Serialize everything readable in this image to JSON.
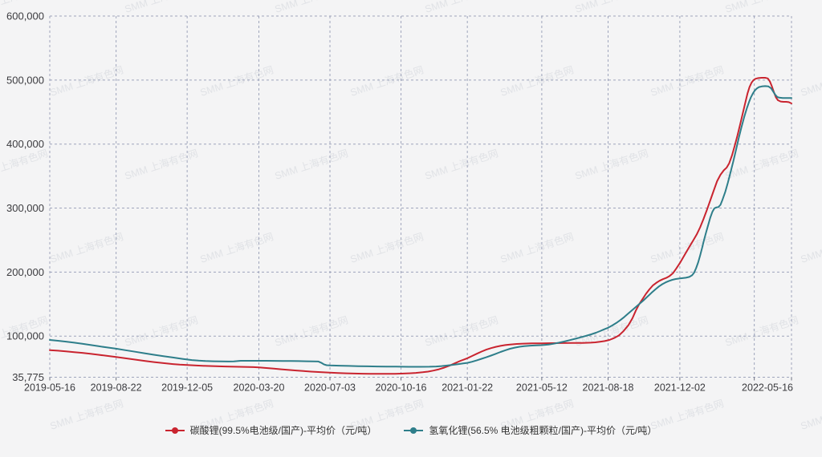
{
  "watermark": {
    "text": "SMM 上海有色网",
    "color": "#aeb2bf",
    "opacity": 0.28
  },
  "chart_data": {
    "type": "line",
    "title": "",
    "grid": "dashed",
    "legend_position": "bottom-center",
    "plot_bg": "#f4f4f5",
    "gridline_color": "#8f96b2",
    "axis_text_color": "#3b3b3f",
    "x_axis": {
      "kind": "date",
      "total_days": 1096,
      "tick_labels": [
        "2019-05-16",
        "2019-08-22",
        "2019-12-05",
        "2020-03-20",
        "2020-07-03",
        "2020-10-16",
        "2021-01-22",
        "2021-05-12",
        "2021-08-18",
        "2021-12-02",
        "2022-05-16"
      ],
      "tick_days": [
        0,
        98,
        203,
        309,
        414,
        519,
        617,
        727,
        825,
        931,
        1096
      ],
      "unlabeled_gridline_days": [
        1041
      ]
    },
    "y_axis": {
      "min": 35775,
      "max": 600000,
      "unit": "元/吨",
      "tick_values": [
        35775,
        100000,
        200000,
        300000,
        400000,
        500000,
        600000
      ],
      "tick_labels": [
        "35,775",
        "100,000",
        "200,000",
        "300,000",
        "400,000",
        "500,000",
        "600,000"
      ]
    },
    "series": [
      {
        "name": "碳酸锂(99.5%电池级/国产)-平均价（元/吨）",
        "color": "#c9242f",
        "points": [
          [
            0,
            78000
          ],
          [
            12,
            77200
          ],
          [
            24,
            76200
          ],
          [
            36,
            75000
          ],
          [
            48,
            73800
          ],
          [
            60,
            72400
          ],
          [
            72,
            70800
          ],
          [
            84,
            69200
          ],
          [
            98,
            67300
          ],
          [
            112,
            65300
          ],
          [
            126,
            63300
          ],
          [
            140,
            61300
          ],
          [
            154,
            59500
          ],
          [
            168,
            57800
          ],
          [
            182,
            56300
          ],
          [
            192,
            55500
          ],
          [
            203,
            54800
          ],
          [
            217,
            54000
          ],
          [
            231,
            53400
          ],
          [
            245,
            52900
          ],
          [
            259,
            52500
          ],
          [
            273,
            52200
          ],
          [
            287,
            51900
          ],
          [
            301,
            51500
          ],
          [
            309,
            51200
          ],
          [
            320,
            50200
          ],
          [
            331,
            49200
          ],
          [
            342,
            48200
          ],
          [
            353,
            47200
          ],
          [
            364,
            46300
          ],
          [
            375,
            45400
          ],
          [
            386,
            44600
          ],
          [
            397,
            43900
          ],
          [
            408,
            43300
          ],
          [
            414,
            43000
          ],
          [
            426,
            42400
          ],
          [
            438,
            41900
          ],
          [
            450,
            41500
          ],
          [
            462,
            41300
          ],
          [
            474,
            41200
          ],
          [
            486,
            41100
          ],
          [
            498,
            41100
          ],
          [
            510,
            41200
          ],
          [
            519,
            41400
          ],
          [
            531,
            41900
          ],
          [
            541,
            42600
          ],
          [
            551,
            43500
          ],
          [
            559,
            44600
          ],
          [
            567,
            46200
          ],
          [
            575,
            48200
          ],
          [
            583,
            50800
          ],
          [
            591,
            54000
          ],
          [
            599,
            57800
          ],
          [
            607,
            61500
          ],
          [
            612,
            63500
          ],
          [
            617,
            65500
          ],
          [
            624,
            69000
          ],
          [
            631,
            72500
          ],
          [
            638,
            75800
          ],
          [
            645,
            78800
          ],
          [
            652,
            81200
          ],
          [
            659,
            83200
          ],
          [
            666,
            84800
          ],
          [
            673,
            86000
          ],
          [
            680,
            86900
          ],
          [
            690,
            87700
          ],
          [
            700,
            88200
          ],
          [
            712,
            88600
          ],
          [
            727,
            88800
          ],
          [
            742,
            89000
          ],
          [
            757,
            89100
          ],
          [
            772,
            89200
          ],
          [
            787,
            89400
          ],
          [
            799,
            89800
          ],
          [
            806,
            90300
          ],
          [
            813,
            91200
          ],
          [
            820,
            92300
          ],
          [
            827,
            94000
          ],
          [
            834,
            97000
          ],
          [
            841,
            101000
          ],
          [
            848,
            108000
          ],
          [
            855,
            117000
          ],
          [
            861,
            128000
          ],
          [
            866,
            140000
          ],
          [
            871,
            150000
          ],
          [
            876,
            158000
          ],
          [
            881,
            166000
          ],
          [
            886,
            173000
          ],
          [
            891,
            179000
          ],
          [
            896,
            183000
          ],
          [
            901,
            186500
          ],
          [
            906,
            189000
          ],
          [
            911,
            191000
          ],
          [
            916,
            194000
          ],
          [
            921,
            198500
          ],
          [
            926,
            206000
          ],
          [
            931,
            214000
          ],
          [
            936,
            223000
          ],
          [
            941,
            232000
          ],
          [
            946,
            241000
          ],
          [
            951,
            250000
          ],
          [
            956,
            259000
          ],
          [
            961,
            270000
          ],
          [
            966,
            283000
          ],
          [
            971,
            297000
          ],
          [
            976,
            312000
          ],
          [
            981,
            327000
          ],
          [
            986,
            342000
          ],
          [
            991,
            352000
          ],
          [
            996,
            359000
          ],
          [
            1000,
            363000
          ],
          [
            1004,
            370000
          ],
          [
            1008,
            382000
          ],
          [
            1012,
            397000
          ],
          [
            1016,
            413000
          ],
          [
            1020,
            430000
          ],
          [
            1024,
            448000
          ],
          [
            1028,
            466000
          ],
          [
            1031,
            479000
          ],
          [
            1034,
            489000
          ],
          [
            1037,
            496000
          ],
          [
            1040,
            500000
          ],
          [
            1043,
            502000
          ],
          [
            1047,
            503000
          ],
          [
            1052,
            503500
          ],
          [
            1057,
            503500
          ],
          [
            1061,
            502500
          ],
          [
            1064,
            498000
          ],
          [
            1067,
            490000
          ],
          [
            1070,
            481000
          ],
          [
            1073,
            473000
          ],
          [
            1076,
            468500
          ],
          [
            1080,
            466500
          ],
          [
            1084,
            466000
          ],
          [
            1088,
            466000
          ],
          [
            1092,
            465500
          ],
          [
            1096,
            463500
          ]
        ]
      },
      {
        "name": "氢氧化锂(56.5% 电池级粗颗粒/国产)-平均价（元/吨）",
        "color": "#2e7e8a",
        "points": [
          [
            0,
            94000
          ],
          [
            12,
            92800
          ],
          [
            24,
            91400
          ],
          [
            36,
            89800
          ],
          [
            48,
            88000
          ],
          [
            60,
            86200
          ],
          [
            72,
            84300
          ],
          [
            84,
            82400
          ],
          [
            98,
            80300
          ],
          [
            112,
            78000
          ],
          [
            126,
            75600
          ],
          [
            140,
            73200
          ],
          [
            154,
            70900
          ],
          [
            168,
            68700
          ],
          [
            182,
            66600
          ],
          [
            196,
            64500
          ],
          [
            203,
            63500
          ],
          [
            210,
            62600
          ],
          [
            220,
            61700
          ],
          [
            230,
            61100
          ],
          [
            242,
            60700
          ],
          [
            254,
            60400
          ],
          [
            264,
            60300
          ],
          [
            272,
            60400
          ],
          [
            282,
            61400
          ],
          [
            292,
            61500
          ],
          [
            302,
            61500
          ],
          [
            309,
            61500
          ],
          [
            320,
            61400
          ],
          [
            332,
            61300
          ],
          [
            344,
            61200
          ],
          [
            356,
            61100
          ],
          [
            368,
            60900
          ],
          [
            380,
            60700
          ],
          [
            390,
            60500
          ],
          [
            397,
            60300
          ],
          [
            401,
            58500
          ],
          [
            405,
            56000
          ],
          [
            409,
            54600
          ],
          [
            414,
            54200
          ],
          [
            428,
            53800
          ],
          [
            442,
            53400
          ],
          [
            456,
            53100
          ],
          [
            470,
            52800
          ],
          [
            484,
            52600
          ],
          [
            498,
            52400
          ],
          [
            512,
            52300
          ],
          [
            519,
            52200
          ],
          [
            533,
            52000
          ],
          [
            547,
            52000
          ],
          [
            561,
            52200
          ],
          [
            571,
            52600
          ],
          [
            579,
            53200
          ],
          [
            587,
            54000
          ],
          [
            595,
            55000
          ],
          [
            603,
            56200
          ],
          [
            611,
            57300
          ],
          [
            617,
            58200
          ],
          [
            624,
            60000
          ],
          [
            631,
            62200
          ],
          [
            638,
            64600
          ],
          [
            645,
            67000
          ],
          [
            652,
            69600
          ],
          [
            659,
            72400
          ],
          [
            666,
            75200
          ],
          [
            673,
            77800
          ],
          [
            680,
            80200
          ],
          [
            687,
            82000
          ],
          [
            694,
            83400
          ],
          [
            701,
            84400
          ],
          [
            710,
            85100
          ],
          [
            719,
            85500
          ],
          [
            727,
            85900
          ],
          [
            737,
            86800
          ],
          [
            744,
            88000
          ],
          [
            752,
            89600
          ],
          [
            760,
            91500
          ],
          [
            768,
            93600
          ],
          [
            776,
            95800
          ],
          [
            784,
            98000
          ],
          [
            792,
            100300
          ],
          [
            800,
            102800
          ],
          [
            807,
            105300
          ],
          [
            813,
            107800
          ],
          [
            819,
            110500
          ],
          [
            825,
            113000
          ],
          [
            831,
            116500
          ],
          [
            837,
            120500
          ],
          [
            843,
            125000
          ],
          [
            849,
            130000
          ],
          [
            855,
            135500
          ],
          [
            861,
            141000
          ],
          [
            866,
            145500
          ],
          [
            871,
            150000
          ],
          [
            877,
            155500
          ],
          [
            883,
            161500
          ],
          [
            889,
            167500
          ],
          [
            895,
            173000
          ],
          [
            900,
            177500
          ],
          [
            905,
            181000
          ],
          [
            910,
            184000
          ],
          [
            915,
            186200
          ],
          [
            920,
            188000
          ],
          [
            925,
            189200
          ],
          [
            930,
            190000
          ],
          [
            935,
            190600
          ],
          [
            940,
            191200
          ],
          [
            945,
            192500
          ],
          [
            949,
            195000
          ],
          [
            952,
            199000
          ],
          [
            955,
            206000
          ],
          [
            958,
            215000
          ],
          [
            961,
            226000
          ],
          [
            964,
            238000
          ],
          [
            967,
            251000
          ],
          [
            970,
            263000
          ],
          [
            973,
            274000
          ],
          [
            976,
            285000
          ],
          [
            979,
            294000
          ],
          [
            982,
            299500
          ],
          [
            985,
            301000
          ],
          [
            988,
            301500
          ],
          [
            991,
            305000
          ],
          [
            994,
            313000
          ],
          [
            998,
            325000
          ],
          [
            1002,
            340000
          ],
          [
            1006,
            356000
          ],
          [
            1010,
            373000
          ],
          [
            1014,
            391000
          ],
          [
            1018,
            409000
          ],
          [
            1022,
            426000
          ],
          [
            1026,
            442000
          ],
          [
            1030,
            456000
          ],
          [
            1033,
            465000
          ],
          [
            1036,
            473000
          ],
          [
            1039,
            479000
          ],
          [
            1042,
            484000
          ],
          [
            1045,
            487000
          ],
          [
            1048,
            489000
          ],
          [
            1052,
            490000
          ],
          [
            1057,
            490500
          ],
          [
            1062,
            490000
          ],
          [
            1066,
            487000
          ],
          [
            1069,
            482000
          ],
          [
            1072,
            477000
          ],
          [
            1075,
            473500
          ],
          [
            1078,
            472500
          ],
          [
            1083,
            472000
          ],
          [
            1088,
            472000
          ],
          [
            1093,
            472000
          ],
          [
            1096,
            472000
          ]
        ]
      }
    ]
  },
  "legend": {
    "items": [
      {
        "label": "碳酸锂(99.5%电池级/国产)-平均价（元/吨）"
      },
      {
        "label": "氢氧化锂(56.5% 电池级粗颗粒/国产)-平均价（元/吨）"
      }
    ]
  }
}
